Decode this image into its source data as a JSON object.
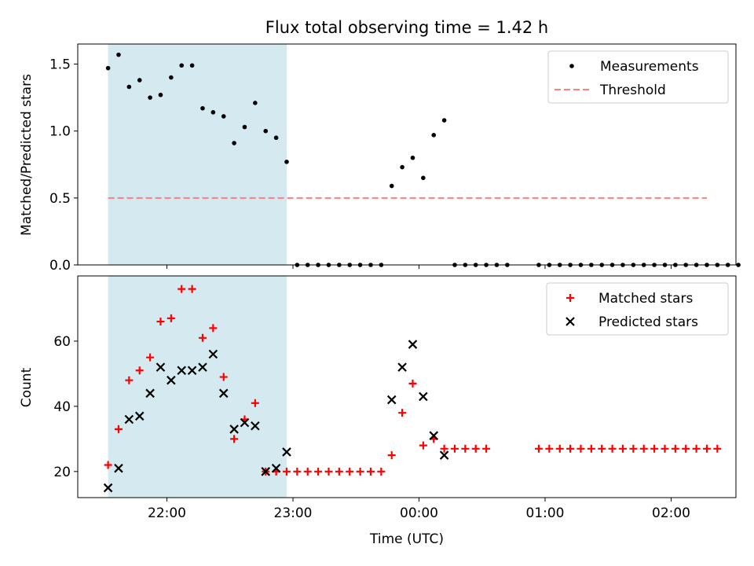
{
  "chart_data": [
    {
      "type": "scatter",
      "title": "Flux total observing time = 1.42 h",
      "ylabel": "Matched/Predicted stars",
      "xlabel": "",
      "ylim": [
        0,
        1.65
      ],
      "yticks": [
        0.0,
        0.5,
        1.0,
        1.5
      ],
      "ytick_labels": [
        "0.0",
        "0.5",
        "1.0",
        "1.5"
      ],
      "x_tick_hours": [
        22,
        23,
        24,
        25,
        26
      ],
      "x_tick_labels": [],
      "shaded_span": {
        "start": "21:32",
        "end": "22:57",
        "color": "#d4eaf0"
      },
      "legend_position": "top-right",
      "series": [
        {
          "name": "Measurements",
          "marker": "dot",
          "color": "#000000",
          "x": [
            "21:32",
            "21:37",
            "21:42",
            "21:47",
            "21:52",
            "21:57",
            "22:02",
            "22:07",
            "22:12",
            "22:17",
            "22:22",
            "22:27",
            "22:32",
            "22:37",
            "22:42",
            "22:47",
            "22:52",
            "22:57",
            "23:02",
            "23:07",
            "23:12",
            "23:17",
            "23:22",
            "23:27",
            "23:32",
            "23:37",
            "23:42",
            "23:47",
            "23:52",
            "23:57",
            "00:02",
            "00:07",
            "00:12",
            "00:17",
            "00:22",
            "00:27",
            "00:32",
            "00:37",
            "00:42",
            "00:57",
            "01:02",
            "01:07",
            "01:12",
            "01:17",
            "01:22",
            "01:27",
            "01:32",
            "01:37",
            "01:42",
            "01:47",
            "01:52",
            "01:57",
            "02:02",
            "02:07",
            "02:12",
            "02:17",
            "02:22",
            "02:27",
            "02:32"
          ],
          "y": [
            1.47,
            1.57,
            1.33,
            1.38,
            1.25,
            1.27,
            1.4,
            1.49,
            1.49,
            1.17,
            1.14,
            1.11,
            0.91,
            1.03,
            1.21,
            1.0,
            0.95,
            0.77,
            0,
            0,
            0,
            0,
            0,
            0,
            0,
            0,
            0,
            0.59,
            0.73,
            0.8,
            0.65,
            0.97,
            1.08,
            0,
            0,
            0,
            0,
            0,
            0,
            0,
            0,
            0,
            0,
            0,
            0,
            0,
            0,
            0,
            0,
            0,
            0,
            0,
            0,
            0,
            0,
            0,
            0,
            0,
            0
          ]
        },
        {
          "name": "Threshold",
          "marker": "dashed-line",
          "color": "#ff7f7f",
          "x": [
            "21:32",
            "02:17"
          ],
          "y": [
            0.5,
            0.5
          ]
        }
      ]
    },
    {
      "type": "scatter",
      "title": "",
      "ylabel": "Count",
      "xlabel": "Time (UTC)",
      "ylim": [
        12,
        80
      ],
      "yticks": [
        20,
        40,
        60
      ],
      "ytick_labels": [
        "20",
        "40",
        "60"
      ],
      "x_tick_hours": [
        22,
        23,
        24,
        25,
        26
      ],
      "x_tick_labels": [
        "22:00",
        "23:00",
        "00:00",
        "01:00",
        "02:00"
      ],
      "shaded_span": {
        "start": "21:32",
        "end": "22:57",
        "color": "#d4eaf0"
      },
      "legend_position": "top-right",
      "series": [
        {
          "name": "Matched stars",
          "marker": "plus",
          "color": "#ff0000",
          "x": [
            "21:32",
            "21:37",
            "21:42",
            "21:47",
            "21:52",
            "21:57",
            "22:02",
            "22:07",
            "22:12",
            "22:17",
            "22:22",
            "22:27",
            "22:32",
            "22:37",
            "22:42",
            "22:47",
            "22:52",
            "22:57",
            "23:02",
            "23:07",
            "23:12",
            "23:17",
            "23:22",
            "23:27",
            "23:32",
            "23:37",
            "23:42",
            "23:47",
            "23:52",
            "23:57",
            "00:02",
            "00:07",
            "00:12",
            "00:17",
            "00:22",
            "00:27",
            "00:32",
            "00:57",
            "01:02",
            "01:07",
            "01:12",
            "01:17",
            "01:22",
            "01:27",
            "01:32",
            "01:37",
            "01:42",
            "01:47",
            "01:52",
            "01:57",
            "02:02",
            "02:07",
            "02:12",
            "02:17",
            "02:22"
          ],
          "y": [
            22,
            33,
            48,
            51,
            55,
            66,
            67,
            76,
            76,
            61,
            64,
            49,
            30,
            36,
            41,
            20,
            20,
            20,
            20,
            20,
            20,
            20,
            20,
            20,
            20,
            20,
            20,
            25,
            38,
            47,
            28,
            30,
            27,
            27,
            27,
            27,
            27,
            27,
            27,
            27,
            27,
            27,
            27,
            27,
            27,
            27,
            27,
            27,
            27,
            27,
            27,
            27,
            27,
            27,
            27
          ]
        },
        {
          "name": "Predicted stars",
          "marker": "x",
          "color": "#000000",
          "x": [
            "21:32",
            "21:37",
            "21:42",
            "21:47",
            "21:52",
            "21:57",
            "22:02",
            "22:07",
            "22:12",
            "22:17",
            "22:22",
            "22:27",
            "22:32",
            "22:37",
            "22:42",
            "22:47",
            "22:52",
            "22:57",
            "23:47",
            "23:52",
            "23:57",
            "00:02",
            "00:07",
            "00:12"
          ],
          "y": [
            15,
            21,
            36,
            37,
            44,
            52,
            48,
            51,
            51,
            52,
            56,
            44,
            33,
            35,
            34,
            20,
            21,
            26,
            42,
            52,
            59,
            43,
            31,
            25
          ]
        }
      ]
    }
  ]
}
